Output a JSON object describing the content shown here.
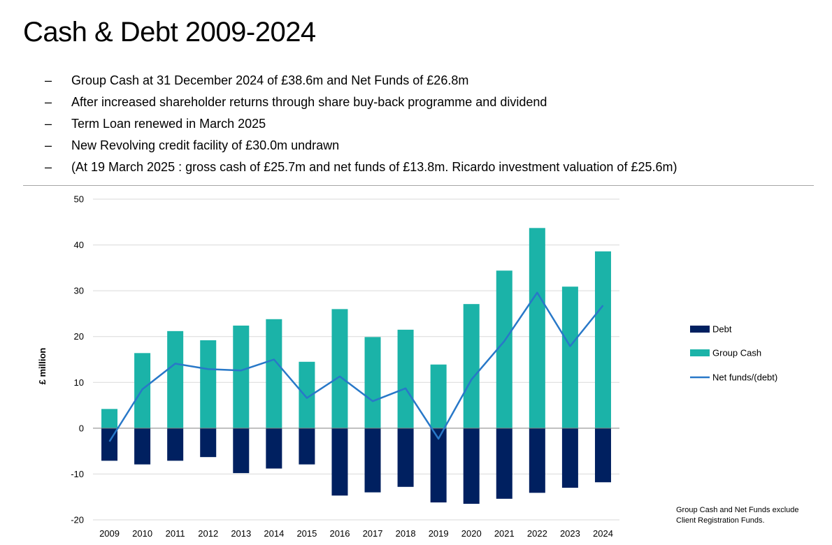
{
  "slide": {
    "title": "Cash & Debt 2009-2024",
    "bullets": [
      {
        "marker": "–",
        "text": "Group Cash at 31 December 2024 of £38.6m and Net Funds of £26.8m"
      },
      {
        "marker": "–",
        "text": "After increased shareholder returns through share buy-back programme and dividend"
      },
      {
        "marker": "–",
        "text": "Term Loan renewed in March 2025"
      },
      {
        "marker": "–",
        "text": "New Revolving credit facility of £30.0m undrawn"
      },
      {
        "marker": "–",
        "text": "(At 19 March 2025 : gross cash of £25.7m and net funds of £13.8m. Ricardo investment valuation of £25.6m)"
      }
    ],
    "footnote": {
      "line1": "Group Cash and Net Funds exclude",
      "line2": "Client Registration Funds."
    }
  },
  "chart_data": {
    "type": "bar",
    "title": "",
    "xlabel": "",
    "ylabel": "£ million",
    "ylim": [
      -20,
      50
    ],
    "yticks": [
      50,
      40,
      30,
      20,
      10,
      0,
      -10,
      -20
    ],
    "grid": true,
    "legend_position": "right",
    "categories": [
      "2009",
      "2010",
      "2011",
      "2012",
      "2013",
      "2014",
      "2015",
      "2016",
      "2017",
      "2018",
      "2019",
      "2020",
      "2021",
      "2022",
      "2023",
      "2024"
    ],
    "series": [
      {
        "name": "Debt",
        "kind": "bar",
        "color": "#002060",
        "values": [
          -7.1,
          -7.9,
          -7.1,
          -6.3,
          -9.8,
          -8.8,
          -7.9,
          -14.7,
          -14.0,
          -12.8,
          -16.2,
          -16.5,
          -15.4,
          -14.1,
          -13.0,
          -11.8
        ]
      },
      {
        "name": "Group Cash",
        "kind": "bar",
        "color": "#1bb3a8",
        "values": [
          4.2,
          16.4,
          21.2,
          19.2,
          22.4,
          23.8,
          14.5,
          26.0,
          19.9,
          21.5,
          13.9,
          27.1,
          34.4,
          43.7,
          30.9,
          38.6
        ]
      },
      {
        "name": "Net funds/(debt)",
        "kind": "line",
        "color": "#2878c8",
        "values": [
          -2.9,
          8.5,
          14.1,
          12.9,
          12.6,
          15.0,
          6.6,
          11.3,
          5.9,
          8.7,
          -2.3,
          10.6,
          19.0,
          29.6,
          17.9,
          26.8
        ]
      }
    ]
  }
}
